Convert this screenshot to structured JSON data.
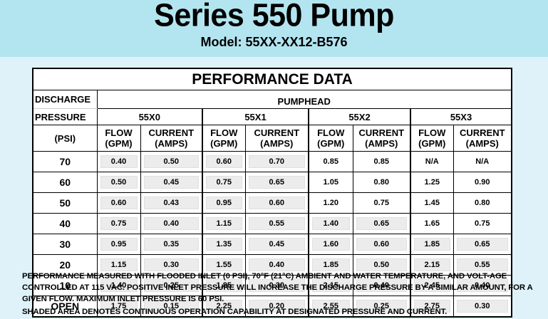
{
  "header": {
    "title": "Series 550 Pump",
    "model": "Model: 55XX-XX12-B576"
  },
  "table": {
    "title": "PERFORMANCE DATA",
    "row_header_lines": [
      "DISCHARGE",
      "PRESSURE",
      "(PSI)"
    ],
    "group_header": "PUMPHEAD",
    "models": [
      "55X0",
      "55X1",
      "55X2",
      "55X3"
    ],
    "sub_headers": {
      "flow": [
        "FLOW",
        "(GPM)"
      ],
      "current": [
        "CURRENT",
        "(AMPS)"
      ]
    },
    "shade_color": "#ececec",
    "rows": [
      {
        "psi": "70",
        "values": [
          "0.40",
          "0.50",
          "0.60",
          "0.70",
          "0.85",
          "0.85",
          "N/A",
          "N/A"
        ],
        "shaded": [
          true,
          true,
          true,
          true,
          false,
          false,
          false,
          false
        ]
      },
      {
        "psi": "60",
        "values": [
          "0.50",
          "0.45",
          "0.75",
          "0.65",
          "1.05",
          "0.80",
          "1.25",
          "0.90"
        ],
        "shaded": [
          true,
          true,
          true,
          true,
          false,
          false,
          false,
          false
        ]
      },
      {
        "psi": "50",
        "values": [
          "0.60",
          "0.43",
          "0.95",
          "0.60",
          "1.20",
          "0.75",
          "1.45",
          "0.80"
        ],
        "shaded": [
          true,
          true,
          true,
          true,
          false,
          false,
          false,
          false
        ]
      },
      {
        "psi": "40",
        "values": [
          "0.75",
          "0.40",
          "1.15",
          "0.55",
          "1.40",
          "0.65",
          "1.65",
          "0.75"
        ],
        "shaded": [
          true,
          true,
          true,
          true,
          true,
          true,
          false,
          false
        ]
      },
      {
        "psi": "30",
        "values": [
          "0.95",
          "0.35",
          "1.35",
          "0.45",
          "1.60",
          "0.60",
          "1.85",
          "0.65"
        ],
        "shaded": [
          true,
          true,
          true,
          true,
          true,
          true,
          true,
          true
        ]
      },
      {
        "psi": "20",
        "values": [
          "1.15",
          "0.30",
          "1.55",
          "0.40",
          "1.85",
          "0.50",
          "2.15",
          "0.55"
        ],
        "shaded": [
          true,
          true,
          true,
          true,
          true,
          true,
          true,
          true
        ]
      },
      {
        "psi": "10",
        "values": [
          "1.40",
          "0.25",
          "1.85",
          "0.30",
          "2.15",
          "0.40",
          "2.45",
          "0.40"
        ],
        "shaded": [
          true,
          true,
          true,
          true,
          true,
          true,
          true,
          true
        ]
      },
      {
        "psi": "OPEN",
        "values": [
          "1.75",
          "0.15",
          "2.25",
          "0.20",
          "2.55",
          "0.25",
          "2.75",
          "0.30"
        ],
        "shaded": [
          true,
          true,
          true,
          true,
          true,
          true,
          true,
          true
        ]
      }
    ]
  },
  "notes": {
    "performance": "PERFORMANCE MEASURED WITH FLOODED INLET (0 PSI), 70°F (21°C) AMBIENT AND WATER TEMPERATURE, AND VOLT-AGE CONTROLLED AT 115 VAC.  POSITIVE INLET PRESSURE WILL INCREASE THE DISCHARGE PRESSURE BY A SIMILAR AMOUNT, FOR A GIVEN FLOW.  MAXIMUM INLET PRESSURE IS 60 PSI.",
    "shading": "SHADED AREA DENOTES CONTINUOUS OPERATION CAPABILITY AT DESIGNATED PRESSURE AND CURRENT."
  }
}
